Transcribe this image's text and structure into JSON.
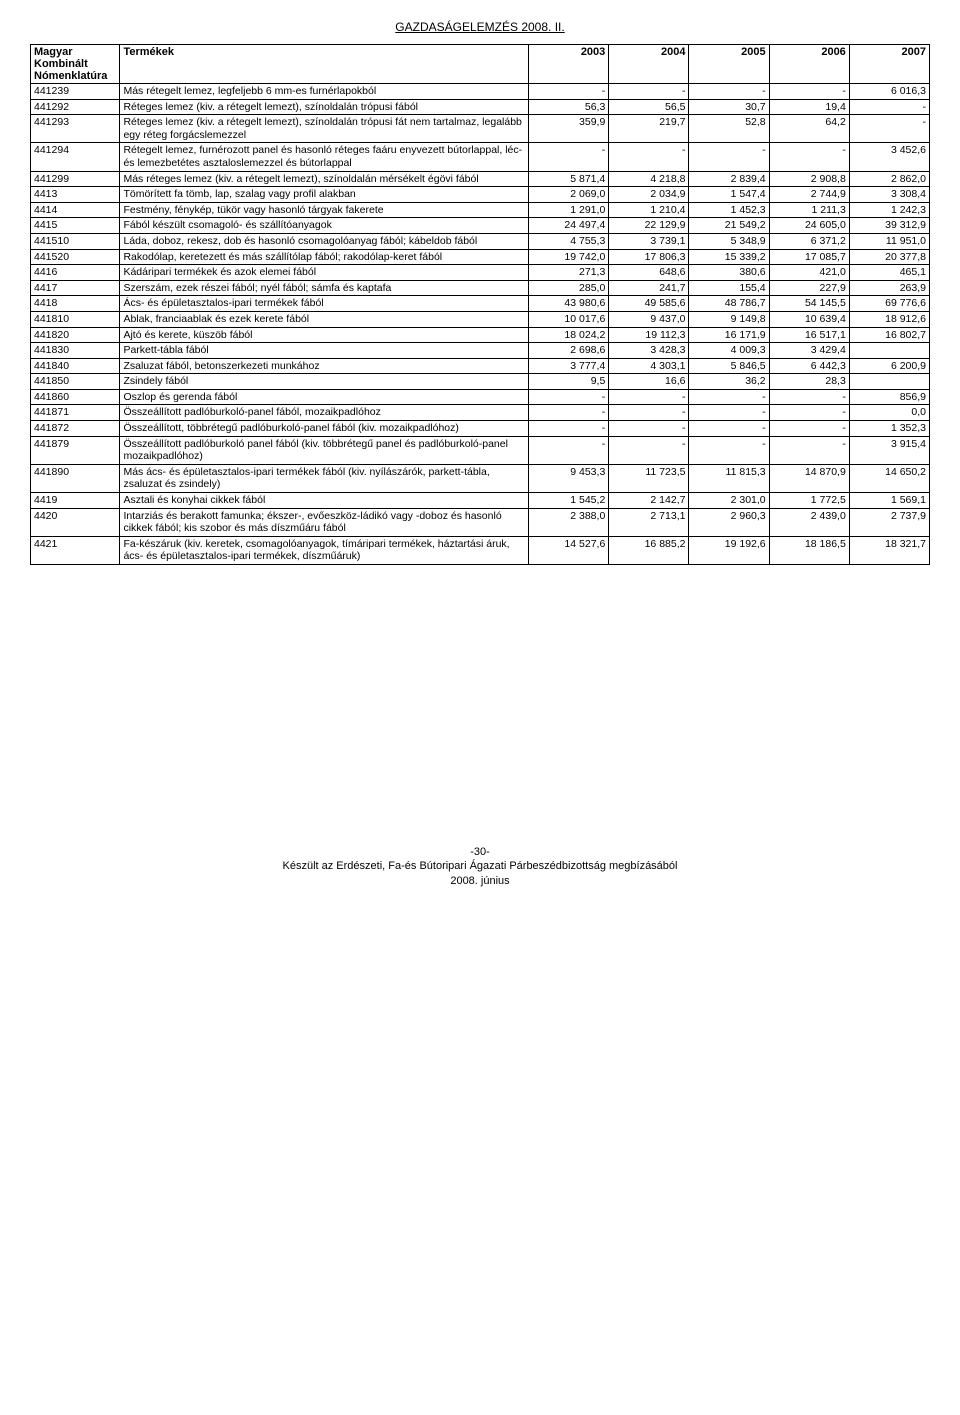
{
  "page": {
    "header": "GAZDASÁGELEMZÉS 2008. II.",
    "footer_line1": "-30-",
    "footer_line2": "Készült az Erdészeti, Fa-és Bútoripari Ágazati Párbeszédbizottság megbízásából",
    "footer_line3": "2008. június"
  },
  "table": {
    "columns": [
      "Magyar Kombinált Nómenklatúra",
      "Termékek",
      "2003",
      "2004",
      "2005",
      "2006",
      "2007"
    ],
    "rows": [
      [
        "441239",
        "Más rétegelt lemez, legfeljebb 6 mm-es furnérlapokból",
        "-",
        "-",
        "-",
        "-",
        "6 016,3"
      ],
      [
        "441292",
        "Réteges lemez (kiv. a rétegelt lemezt), színoldalán trópusi fából",
        "56,3",
        "56,5",
        "30,7",
        "19,4",
        "-"
      ],
      [
        "441293",
        "Réteges lemez (kiv. a rétegelt lemezt), színoldalán trópusi fát nem tartalmaz, legalább egy réteg forgácslemezzel",
        "359,9",
        "219,7",
        "52,8",
        "64,2",
        "-"
      ],
      [
        "441294",
        "Rétegelt lemez, furnérozott panel és hasonló réteges faáru enyvezett bútorlappal, léc- és lemezbetétes asztaloslemezzel és bútorlappal",
        "-",
        "-",
        "-",
        "-",
        "3 452,6"
      ],
      [
        "441299",
        "Más réteges lemez (kiv. a rétegelt lemezt), színoldalán mérsékelt égövi fából",
        "5 871,4",
        "4 218,8",
        "2 839,4",
        "2 908,8",
        "2 862,0"
      ],
      [
        "4413",
        "Tömörített fa tömb, lap, szalag vagy profil alakban",
        "2 069,0",
        "2 034,9",
        "1 547,4",
        "2 744,9",
        "3 308,4"
      ],
      [
        "4414",
        "Festmény, fénykép, tükör vagy hasonló tárgyak fakerete",
        "1 291,0",
        "1 210,4",
        "1 452,3",
        "1 211,3",
        "1 242,3"
      ],
      [
        "4415",
        "Fából készült csomagoló- és szállítóanyagok",
        "24 497,4",
        "22 129,9",
        "21 549,2",
        "24 605,0",
        "39 312,9"
      ],
      [
        "441510",
        "Láda, doboz, rekesz, dob és hasonló csomagolóanyag fából; kábeldob fából",
        "4 755,3",
        "3 739,1",
        "5 348,9",
        "6 371,2",
        "11 951,0"
      ],
      [
        "441520",
        "Rakodólap, keretezett és más szállítólap fából; rakodólap-keret fából",
        "19 742,0",
        "17 806,3",
        "15 339,2",
        "17 085,7",
        "20 377,8"
      ],
      [
        "4416",
        "Kádáripari termékek és azok elemei fából",
        "271,3",
        "648,6",
        "380,6",
        "421,0",
        "465,1"
      ],
      [
        "4417",
        "Szerszám, ezek részei fából; nyél fából; sámfa és kaptafa",
        "285,0",
        "241,7",
        "155,4",
        "227,9",
        "263,9"
      ],
      [
        "4418",
        "Ács- és épületasztalos-ipari termékek fából",
        "43 980,6",
        "49 585,6",
        "48 786,7",
        "54 145,5",
        "69 776,6"
      ],
      [
        "441810",
        "Ablak, franciaablak és ezek kerete fából",
        "10 017,6",
        "9 437,0",
        "9 149,8",
        "10 639,4",
        "18 912,6"
      ],
      [
        "441820",
        "Ajtó és kerete, küszöb fából",
        "18 024,2",
        "19 112,3",
        "16 171,9",
        "16 517,1",
        "16 802,7"
      ],
      [
        "441830",
        "Parkett-tábla fából",
        "2 698,6",
        "3 428,3",
        "4 009,3",
        "3 429,4",
        ""
      ],
      [
        "441840",
        "Zsaluzat fából, betonszerkezeti munkához",
        "3 777,4",
        "4 303,1",
        "5 846,5",
        "6 442,3",
        "6 200,9"
      ],
      [
        "441850",
        "Zsindely fából",
        "9,5",
        "16,6",
        "36,2",
        "28,3",
        ""
      ],
      [
        "441860",
        "Oszlop és gerenda fából",
        "-",
        "-",
        "-",
        "-",
        "856,9"
      ],
      [
        "441871",
        "Összeállított padlóburkoló-panel fából, mozaikpadlóhoz",
        "-",
        "-",
        "-",
        "-",
        "0,0"
      ],
      [
        "441872",
        "Összeállított, többrétegű padlóburkoló-panel fából (kiv. mozaikpadlóhoz)",
        "-",
        "-",
        "-",
        "-",
        "1 352,3"
      ],
      [
        "441879",
        "Összeállított padlóburkoló panel fából (kiv. többrétegű panel és padlóburkoló-panel mozaikpadlóhoz)",
        "-",
        "-",
        "-",
        "-",
        "3 915,4"
      ],
      [
        "441890",
        "Más ács- és épületasztalos-ipari termékek fából (kiv. nyílászárók, parkett-tábla, zsaluzat és zsindely)",
        "9 453,3",
        "11 723,5",
        "11 815,3",
        "14 870,9",
        "14 650,2"
      ],
      [
        "4419",
        "Asztali és konyhai cikkek fából",
        "1 545,2",
        "2 142,7",
        "2 301,0",
        "1 772,5",
        "1 569,1"
      ],
      [
        "4420",
        "Intarziás és berakott famunka; ékszer-, evőeszköz-ládikó vagy -doboz és hasonló cikkek fából; kis szobor és más díszműáru fából",
        "2 388,0",
        "2 713,1",
        "2 960,3",
        "2 439,0",
        "2 737,9"
      ],
      [
        "4421",
        "Fa-készáruk (kiv. keretek, csomagolóanyagok, tímáripari termékek, háztartási áruk, ács- és épületasztalos-ipari termékek, díszműáruk)",
        "14 527,6",
        "16 885,2",
        "19 192,6",
        "18 186,5",
        "18 321,7"
      ]
    ]
  }
}
